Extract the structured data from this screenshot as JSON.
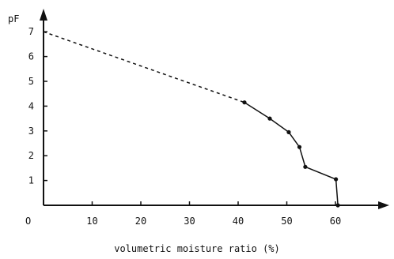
{
  "chart_data": {
    "type": "line",
    "title": "",
    "xlabel": "volumetric moisture ratio (%)",
    "ylabel": "pF",
    "origin_label": "O",
    "xlim": [
      0,
      70
    ],
    "ylim": [
      0,
      7.7
    ],
    "x_ticks": [
      10,
      20,
      30,
      40,
      50,
      60
    ],
    "y_ticks": [
      1,
      2,
      3,
      4,
      5,
      6,
      7
    ],
    "grid": false,
    "series": [
      {
        "style": "solid",
        "markers": true,
        "points": [
          {
            "x": 41.3,
            "y": 4.15
          },
          {
            "x": 46.5,
            "y": 3.5
          },
          {
            "x": 50.4,
            "y": 2.95
          },
          {
            "x": 52.6,
            "y": 2.35
          },
          {
            "x": 53.8,
            "y": 1.55
          },
          {
            "x": 60.1,
            "y": 1.05
          },
          {
            "x": 60.5,
            "y": 0.0
          }
        ]
      },
      {
        "style": "dashed",
        "markers": false,
        "points": [
          {
            "x": 0.0,
            "y": 7.0
          },
          {
            "x": 41.3,
            "y": 4.15
          }
        ]
      }
    ],
    "colors": {
      "line": "#111111",
      "axis": "#111111",
      "background": "#ffffff"
    }
  }
}
